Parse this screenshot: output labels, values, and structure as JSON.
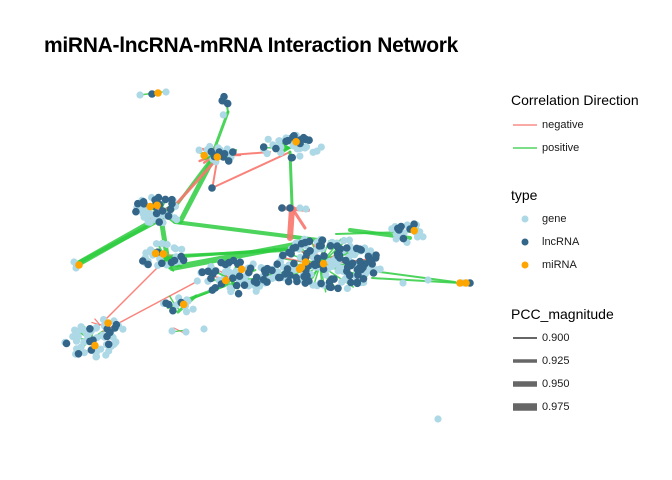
{
  "title": "miRNA-lncRNA-mRNA Interaction Network",
  "legend": {
    "correlation": {
      "title": "Correlation Direction",
      "items": [
        {
          "label": "negative",
          "color": "#F8766D"
        },
        {
          "label": "positive",
          "color": "#2ECC40"
        }
      ]
    },
    "type": {
      "title": "type",
      "items": [
        {
          "label": "gene",
          "color": "#ADD8E6"
        },
        {
          "label": "lncRNA",
          "color": "#336688"
        },
        {
          "label": "miRNA",
          "color": "#FFA500"
        }
      ]
    },
    "pcc": {
      "title": "PCC_magnitude",
      "items": [
        {
          "label": "0.900",
          "value": 0.9
        },
        {
          "label": "0.925",
          "value": 0.925
        },
        {
          "label": "0.950",
          "value": 0.95
        },
        {
          "label": "0.975",
          "value": 0.975
        }
      ]
    }
  },
  "colors": {
    "negative": "#F8766D",
    "positive": "#2ECC40",
    "gene": "#ADD8E6",
    "lncRNA": "#336688",
    "miRNA": "#FFA500",
    "pcc_key": "#666666"
  }
}
